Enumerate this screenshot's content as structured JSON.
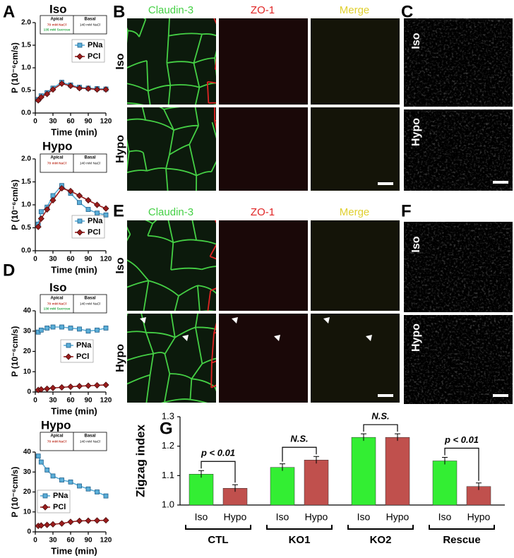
{
  "figure": {
    "panels": [
      "A",
      "B",
      "C",
      "D",
      "E",
      "F",
      "G"
    ],
    "columns": [
      "Claudin-3",
      "ZO-1",
      "Merge"
    ],
    "rows": [
      "Iso",
      "Hypo"
    ]
  },
  "chart_data": [
    {
      "type": "line",
      "title": "Iso",
      "xlabel": "Time (min)",
      "ylabel": "P (10⁻⁶cm/s)",
      "inset": {
        "apical": "Apical",
        "apical_lines": [
          "70 mM NaCl",
          "135 mM Sucrose"
        ],
        "basal": "Basal",
        "basal_lines": [
          "140 mM NaCl"
        ]
      },
      "x": [
        5,
        10,
        20,
        30,
        45,
        60,
        75,
        90,
        105,
        120
      ],
      "series": [
        {
          "name": "PNa",
          "color": "#5aaed8",
          "values": [
            0.3,
            0.38,
            0.45,
            0.55,
            0.68,
            0.62,
            0.57,
            0.55,
            0.54,
            0.53
          ]
        },
        {
          "name": "PCl",
          "color": "#9b1c1c",
          "values": [
            0.28,
            0.35,
            0.42,
            0.52,
            0.65,
            0.6,
            0.55,
            0.54,
            0.52,
            0.52
          ]
        }
      ],
      "xlim": [
        0,
        120
      ],
      "xticks": [
        0,
        30,
        60,
        90,
        120
      ],
      "ylim": [
        0,
        2
      ],
      "yticks": [
        {
          "value": 0,
          "label": "0.0"
        },
        0.5,
        {
          "value": 1,
          "label": "1.0"
        },
        1.5,
        {
          "value": 2,
          "label": "2.0"
        }
      ]
    },
    {
      "type": "line",
      "title": "Hypo",
      "xlabel": "Time (min)",
      "ylabel": "P (10⁻⁶cm/s)",
      "inset": {
        "apical": "Apical",
        "apical_lines": [
          "70 mM NaCl"
        ],
        "basal": "Basal",
        "basal_lines": [
          "140 mM NaCl"
        ]
      },
      "x": [
        5,
        10,
        20,
        30,
        45,
        60,
        75,
        90,
        105,
        120
      ],
      "series": [
        {
          "name": "PNa",
          "color": "#5aaed8",
          "values": [
            0.58,
            0.85,
            0.95,
            1.2,
            1.42,
            1.25,
            1.05,
            0.9,
            0.82,
            0.78
          ]
        },
        {
          "name": "PCl",
          "color": "#9b1c1c",
          "values": [
            0.52,
            0.7,
            0.9,
            1.1,
            1.36,
            1.3,
            1.2,
            1.1,
            1.0,
            0.92
          ]
        }
      ],
      "xlim": [
        0,
        120
      ],
      "xticks": [
        0,
        30,
        60,
        90,
        120
      ],
      "ylim": [
        0,
        2
      ],
      "yticks": [
        {
          "value": 0,
          "label": "0.0"
        },
        0.5,
        {
          "value": 1,
          "label": "1.0"
        },
        1.5,
        {
          "value": 2,
          "label": "2.0"
        }
      ]
    },
    {
      "type": "line",
      "title": "Iso",
      "xlabel": "Time (min)",
      "ylabel": "P (10⁻⁶cm/s)",
      "inset": {
        "apical": "Apical",
        "apical_lines": [
          "70 mM NaCl",
          "130 mM Sucrose"
        ],
        "basal": "Basal",
        "basal_lines": [
          "140 mM NaCl"
        ]
      },
      "x": [
        5,
        10,
        20,
        30,
        45,
        60,
        75,
        90,
        105,
        120
      ],
      "series": [
        {
          "name": "PNa",
          "color": "#5aaed8",
          "values": [
            29.5,
            30.5,
            31.5,
            32,
            32,
            31.5,
            31,
            30,
            30.5,
            31.5
          ]
        },
        {
          "name": "PCl",
          "color": "#9b1c1c",
          "values": [
            1,
            1.3,
            1.6,
            2,
            2.3,
            2.6,
            2.9,
            3.1,
            3.3,
            3.5
          ]
        }
      ],
      "xlim": [
        0,
        120
      ],
      "xticks": [
        0,
        30,
        60,
        90,
        120
      ],
      "ylim": [
        0,
        40
      ],
      "yticks": [
        0,
        10,
        20,
        30,
        40
      ]
    },
    {
      "type": "line",
      "title": "Hypo",
      "xlabel": "Time (min)",
      "ylabel": "P (10⁻⁶cm/s)",
      "inset": {
        "apical": "Apical",
        "apical_lines": [
          "70 mM NaCl"
        ],
        "basal": "Basal",
        "basal_lines": [
          "140 mM NaCl"
        ]
      },
      "x": [
        5,
        10,
        20,
        30,
        45,
        60,
        75,
        90,
        105,
        120
      ],
      "series": [
        {
          "name": "PNa",
          "color": "#5aaed8",
          "values": [
            38,
            35,
            31,
            28,
            26,
            25,
            23,
            21.5,
            20,
            18
          ]
        },
        {
          "name": "PCl",
          "color": "#9b1c1c",
          "values": [
            3,
            3.2,
            3.5,
            3.8,
            4.2,
            5,
            5.5,
            5.6,
            5.7,
            5.8
          ]
        }
      ],
      "xlim": [
        0,
        120
      ],
      "xticks": [
        0,
        30,
        60,
        90,
        120
      ],
      "ylim": [
        0,
        40
      ],
      "yticks": [
        0,
        10,
        20,
        30,
        40
      ]
    },
    {
      "type": "bar",
      "ylabel": "Zigzag index",
      "categories": [
        "Iso",
        "Hypo",
        "Iso",
        "Hypo",
        "Iso",
        "Hypo",
        "Iso",
        "Hypo"
      ],
      "groups": [
        "CTL",
        "KO1",
        "KO2",
        "Rescue"
      ],
      "values": [
        1.105,
        1.057,
        1.128,
        1.153,
        1.23,
        1.23,
        1.15,
        1.063
      ],
      "colors": [
        "#33ee33",
        "#c0504d",
        "#33ee33",
        "#c0504d",
        "#33ee33",
        "#c0504d",
        "#33ee33",
        "#c0504d"
      ],
      "annotations": [
        "p < 0.01",
        "N.S.",
        "N.S.",
        "p < 0.01"
      ],
      "ylim": [
        1.0,
        1.3
      ],
      "yticks": [
        {
          "value": 1.0,
          "label": "1.0"
        },
        1.1,
        1.2,
        1.3
      ]
    }
  ]
}
